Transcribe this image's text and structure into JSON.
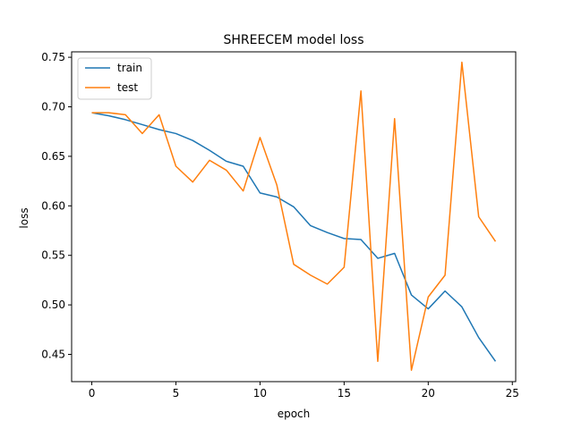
{
  "chart_data": {
    "type": "line",
    "title": "SHREECEM model loss",
    "xlabel": "epoch",
    "ylabel": "loss",
    "xlim": [
      -1.2,
      25.2
    ],
    "ylim": [
      0.4225,
      0.7555
    ],
    "xticks": [
      0,
      5,
      10,
      15,
      20,
      25
    ],
    "yticks": [
      0.45,
      0.5,
      0.55,
      0.6,
      0.65,
      0.7,
      0.75
    ],
    "ytick_labels": [
      "0.45",
      "0.50",
      "0.55",
      "0.60",
      "0.65",
      "0.70",
      "0.75"
    ],
    "grid": false,
    "legend": "upper-left",
    "x": [
      0,
      1,
      2,
      3,
      4,
      5,
      6,
      7,
      8,
      9,
      10,
      11,
      12,
      13,
      14,
      15,
      16,
      17,
      18,
      19,
      20,
      21,
      22,
      23,
      24
    ],
    "series": [
      {
        "name": "train",
        "color": "#1f77b4",
        "values": [
          0.694,
          0.691,
          0.687,
          0.682,
          0.677,
          0.673,
          0.666,
          0.656,
          0.645,
          0.64,
          0.613,
          0.609,
          0.599,
          0.58,
          0.573,
          0.567,
          0.566,
          0.547,
          0.552,
          0.51,
          0.496,
          0.514,
          0.498,
          0.467,
          0.443
        ]
      },
      {
        "name": "test",
        "color": "#ff7f0e",
        "values": [
          0.694,
          0.694,
          0.692,
          0.673,
          0.692,
          0.64,
          0.624,
          0.646,
          0.636,
          0.615,
          0.669,
          0.621,
          0.541,
          0.53,
          0.521,
          0.538,
          0.716,
          0.443,
          0.688,
          0.434,
          0.508,
          0.53,
          0.745,
          0.589,
          0.564
        ]
      }
    ]
  }
}
